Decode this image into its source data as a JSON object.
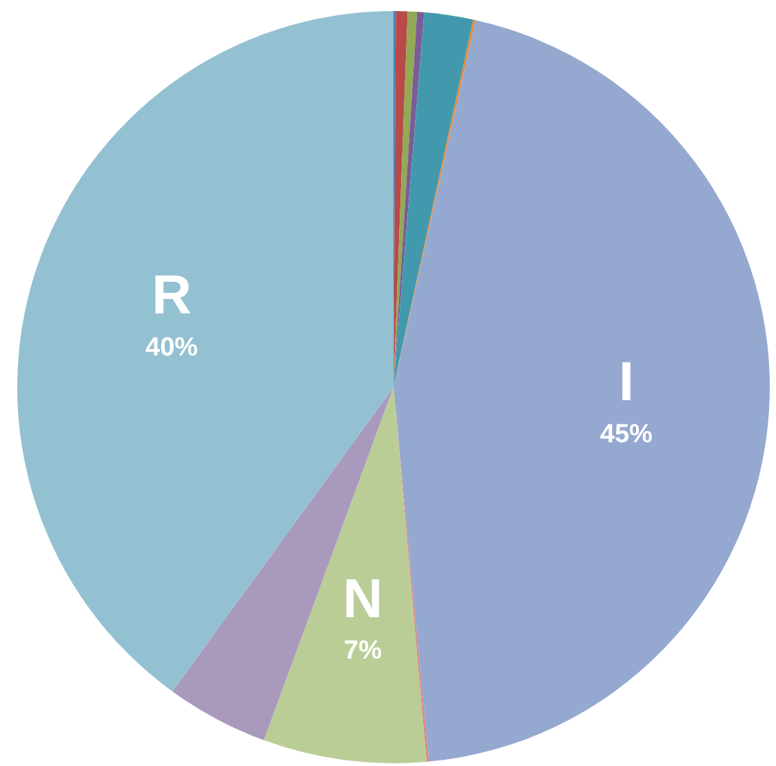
{
  "chart_data": {
    "type": "pie",
    "categories": [
      null,
      null,
      null,
      null,
      null,
      null,
      "I",
      null,
      "N",
      null,
      "R"
    ],
    "values": [
      0.1,
      0.5,
      0.4,
      0.3,
      2.1,
      0.1,
      45,
      0.1,
      7,
      4.4,
      40
    ],
    "colors": [
      "#4a7ebb",
      "#b84a48",
      "#93a954",
      "#7a5c96",
      "#4299ae",
      "#e38a3c",
      "#95a9d0",
      "#d9898a",
      "#bacd96",
      "#a99abd",
      "#93c1d2"
    ],
    "value_labels": [
      null,
      null,
      null,
      null,
      null,
      null,
      "45%",
      null,
      "7%",
      null,
      "40%"
    ],
    "legend": false
  }
}
